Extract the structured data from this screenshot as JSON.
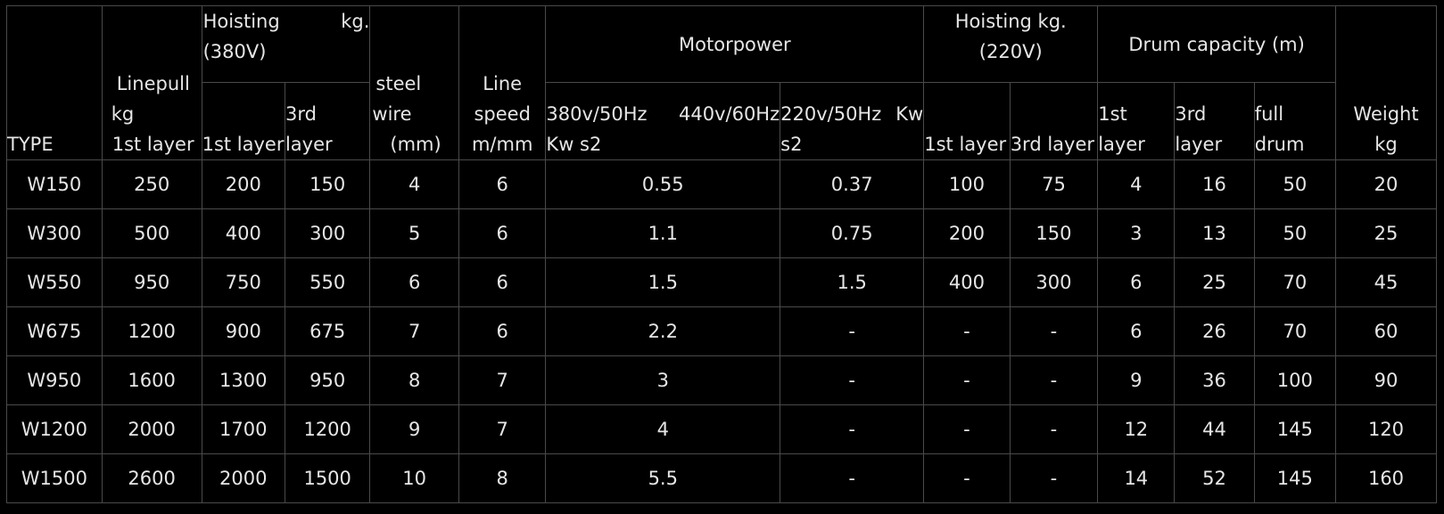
{
  "header": {
    "type": "TYPE",
    "linepull": [
      "Linepull",
      "kg",
      "1st layer"
    ],
    "hoisting380": {
      "line1_left": "Hoisting",
      "line1_right": "kg.",
      "line2": "(380V)"
    },
    "hoisting380_sub": {
      "first": "1st layer",
      "third": [
        "3rd",
        "layer"
      ]
    },
    "steel_wire": [
      "steel",
      "wire",
      "(mm)"
    ],
    "line_speed": [
      "Line",
      "speed",
      "m/mm"
    ],
    "motorpower": "Motorpower",
    "motor_sub": {
      "col1": {
        "line1_left": "380v/50Hz",
        "line1_right": "440v/60Hz",
        "line2": "Kw s2"
      },
      "col2": {
        "line1_left": "220v/50Hz",
        "line1_right": "Kw",
        "line2": "s2"
      }
    },
    "hoisting220": [
      "Hoisting kg.",
      "(220V)"
    ],
    "hoisting220_sub": {
      "first": "1st layer",
      "third": "3rd layer"
    },
    "drum": "Drum capacity (m)",
    "drum_sub": {
      "first": [
        "1st",
        "layer"
      ],
      "third": [
        "3rd",
        "layer"
      ],
      "full": [
        "full",
        "drum"
      ]
    },
    "weight": [
      "Weight",
      "kg"
    ]
  },
  "rows": [
    [
      "W150",
      "250",
      "200",
      "150",
      "4",
      "6",
      "0.55",
      "0.37",
      "100",
      "75",
      "4",
      "16",
      "50",
      "20"
    ],
    [
      "W300",
      "500",
      "400",
      "300",
      "5",
      "6",
      "1.1",
      "0.75",
      "200",
      "150",
      "3",
      "13",
      "50",
      "25"
    ],
    [
      "W550",
      "950",
      "750",
      "550",
      "6",
      "6",
      "1.5",
      "1.5",
      "400",
      "300",
      "6",
      "25",
      "70",
      "45"
    ],
    [
      "W675",
      "1200",
      "900",
      "675",
      "7",
      "6",
      "2.2",
      "-",
      "-",
      "-",
      "6",
      "26",
      "70",
      "60"
    ],
    [
      "W950",
      "1600",
      "1300",
      "950",
      "8",
      "7",
      "3",
      "-",
      "-",
      "-",
      "9",
      "36",
      "100",
      "90"
    ],
    [
      "W1200",
      "2000",
      "1700",
      "1200",
      "9",
      "7",
      "4",
      "-",
      "-",
      "-",
      "12",
      "44",
      "145",
      "120"
    ],
    [
      "W1500",
      "2600",
      "2000",
      "1500",
      "10",
      "8",
      "5.5",
      "-",
      "-",
      "-",
      "14",
      "52",
      "145",
      "160"
    ]
  ]
}
